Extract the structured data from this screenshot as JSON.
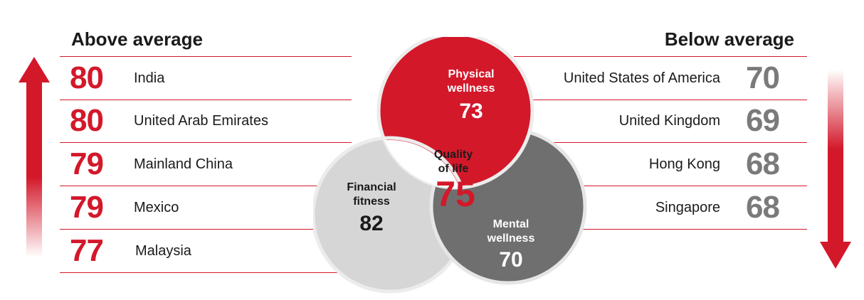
{
  "left_column": {
    "title": "Above average",
    "items": [
      {
        "score": "80",
        "country": "India"
      },
      {
        "score": "80",
        "country": "United Arab Emirates"
      },
      {
        "score": "79",
        "country": "Mainland China"
      },
      {
        "score": "79",
        "country": "Mexico"
      },
      {
        "score": "77",
        "country": "Malaysia"
      }
    ]
  },
  "right_column": {
    "title": "Below average",
    "items": [
      {
        "score": "70",
        "country": "United States of America"
      },
      {
        "score": "69",
        "country": "United Kingdom"
      },
      {
        "score": "68",
        "country": "Hong Kong"
      },
      {
        "score": "68",
        "country": "Singapore"
      }
    ]
  },
  "venn": {
    "physical": {
      "label_1": "Physical",
      "label_2": "wellness",
      "score": "73"
    },
    "financial": {
      "label_1": "Financial",
      "label_2": "fitness",
      "score": "82"
    },
    "mental": {
      "label_1": "Mental",
      "label_2": "wellness",
      "score": "70"
    },
    "center": {
      "label_1": "Quality",
      "label_2": "of life",
      "score": "75"
    }
  },
  "colors": {
    "accent_red": "#d3182a",
    "grey_dark": "#6f6f6f",
    "grey_light": "#d6d6d6",
    "score_grey": "#7a7a7a"
  },
  "icons": {
    "left_arrow": "arrow-up-icon",
    "right_arrow": "arrow-down-icon"
  }
}
